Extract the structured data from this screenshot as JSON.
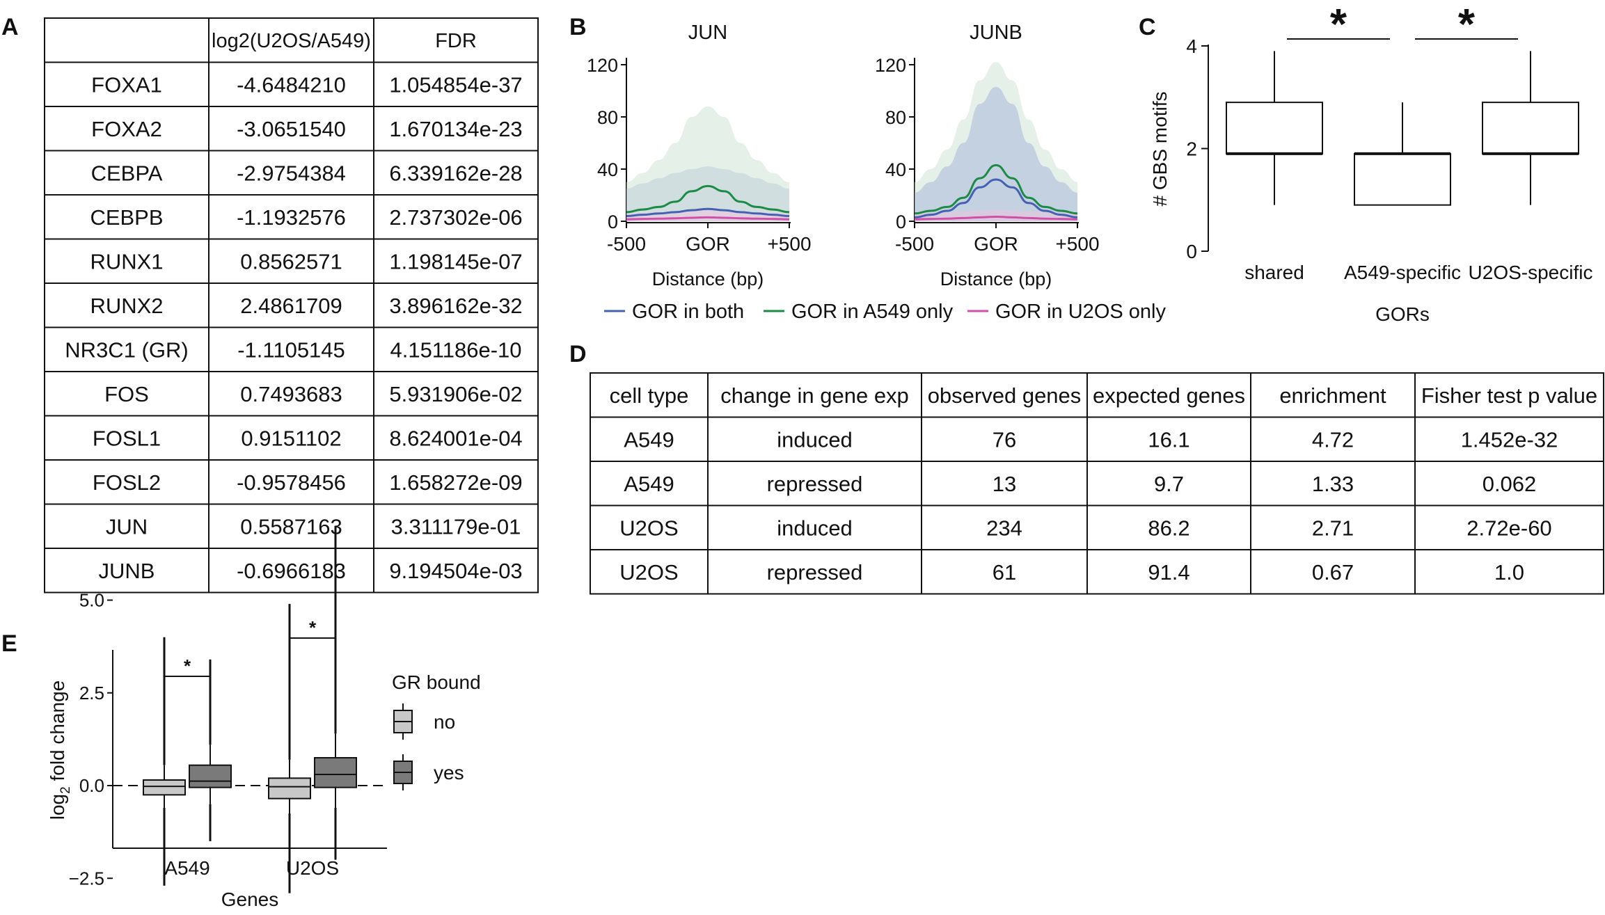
{
  "panel_labels": {
    "a": "A",
    "b": "B",
    "c": "C",
    "d": "D",
    "e": "E"
  },
  "chart_data": [
    {
      "panel": "A",
      "type": "table",
      "columns": [
        "",
        "log2(U2OS/A549)",
        "FDR"
      ],
      "rows": [
        [
          "FOXA1",
          "-4.6484210",
          "1.054854e-37"
        ],
        [
          "FOXA2",
          "-3.0651540",
          "1.670134e-23"
        ],
        [
          "CEBPA",
          "-2.9754384",
          "6.339162e-28"
        ],
        [
          "CEBPB",
          "-1.1932576",
          "2.737302e-06"
        ],
        [
          "RUNX1",
          "0.8562571",
          "1.198145e-07"
        ],
        [
          "RUNX2",
          "2.4861709",
          "3.896162e-32"
        ],
        [
          "NR3C1 (GR)",
          "-1.1105145",
          "4.151186e-10"
        ],
        [
          "FOS",
          "0.7493683",
          "5.931906e-02"
        ],
        [
          "FOSL1",
          "0.9151102",
          "8.624001e-04"
        ],
        [
          "FOSL2",
          "-0.9578456",
          "1.658272e-09"
        ],
        [
          "JUN",
          "0.5587163",
          "3.311179e-01"
        ],
        [
          "JUNB",
          "-0.6966183",
          "9.194504e-03"
        ]
      ]
    },
    {
      "panel": "B",
      "type": "area",
      "title": "JUN",
      "xlabel": "Distance (bp)",
      "x_ticks": [
        "-500",
        "GOR",
        "+500"
      ],
      "ylim": [
        0,
        120
      ],
      "y_ticks": [
        "0",
        "40",
        "80",
        "120"
      ],
      "x": [
        -500,
        -400,
        -300,
        -200,
        -100,
        0,
        100,
        200,
        300,
        400,
        500
      ],
      "series": [
        {
          "name": "GOR in both",
          "color": "#4361b0",
          "mean": [
            4,
            5,
            6,
            7,
            8.5,
            9.5,
            8.5,
            7,
            6,
            5,
            4
          ],
          "upper": [
            25,
            29,
            33,
            37,
            40,
            42,
            40,
            37,
            33,
            29,
            25
          ],
          "band_color": "#a9b8da"
        },
        {
          "name": "GOR in A549 only",
          "color": "#1b8a44",
          "mean": [
            7,
            9,
            11,
            15,
            23,
            27,
            23,
            15,
            11,
            9,
            7
          ],
          "upper": [
            30,
            37,
            47,
            60,
            80,
            88,
            80,
            60,
            47,
            37,
            30
          ],
          "band_color": "#cfe3d6"
        },
        {
          "name": "GOR in U2OS only",
          "color": "#d04fa8",
          "mean": [
            1.5,
            1.8,
            2,
            2.3,
            2.7,
            3,
            2.7,
            2.3,
            2,
            1.8,
            1.5
          ],
          "upper": [
            6,
            6.5,
            7,
            7.5,
            8,
            8.5,
            8,
            7.5,
            7,
            6.5,
            6
          ],
          "band_color": "#ecc4e0"
        }
      ]
    },
    {
      "panel": "B",
      "type": "area",
      "title": "JUNB",
      "xlabel": "Distance (bp)",
      "x_ticks": [
        "-500",
        "GOR",
        "+500"
      ],
      "ylim": [
        0,
        120
      ],
      "y_ticks": [
        "0",
        "40",
        "80",
        "120"
      ],
      "x": [
        -500,
        -400,
        -300,
        -200,
        -100,
        0,
        100,
        200,
        300,
        400,
        500
      ],
      "series": [
        {
          "name": "GOR in A549 only",
          "color": "#1b8a44",
          "mean": [
            6,
            8,
            11,
            18,
            33,
            43,
            33,
            18,
            11,
            8,
            6
          ],
          "upper": [
            30,
            40,
            55,
            78,
            108,
            122,
            108,
            78,
            55,
            40,
            30
          ],
          "band_color": "#cfe3d6"
        },
        {
          "name": "GOR in both",
          "color": "#4361b0",
          "mean": [
            3,
            5,
            8,
            14,
            26,
            32,
            26,
            14,
            8,
            5,
            3
          ],
          "upper": [
            22,
            30,
            42,
            60,
            90,
            103,
            90,
            60,
            42,
            30,
            22
          ],
          "band_color": "#a9b8da"
        },
        {
          "name": "GOR in U2OS only",
          "color": "#d04fa8",
          "mean": [
            1.5,
            1.8,
            2,
            2.5,
            3,
            3.5,
            3,
            2.5,
            2,
            1.8,
            1.5
          ],
          "upper": [
            6,
            6.5,
            7,
            7.5,
            8,
            8.5,
            8,
            7.5,
            7,
            6.5,
            6
          ],
          "band_color": "#ecc4e0"
        }
      ]
    },
    {
      "panel": "B-legend",
      "type": "legend",
      "entries": [
        {
          "name": "GOR in both",
          "color": "#4361b0"
        },
        {
          "name": "GOR in A549 only",
          "color": "#1b8a44"
        },
        {
          "name": "GOR in U2OS only",
          "color": "#d04fa8"
        }
      ]
    },
    {
      "panel": "C",
      "type": "boxplot",
      "categories": [
        "shared",
        "A549-specific",
        "U2OS-specific"
      ],
      "xlabel": "GORs",
      "ylabel": "# GBS motifs",
      "ylim": [
        0,
        4
      ],
      "y_ticks": [
        "0",
        "2",
        "4"
      ],
      "boxes": [
        {
          "min": 0.9,
          "q1": 1.9,
          "median": 1.9,
          "q3": 2.9,
          "max": 3.9
        },
        {
          "min": 0.9,
          "q1": 0.9,
          "median": 1.9,
          "q3": 1.9,
          "max": 2.9
        },
        {
          "min": 0.9,
          "q1": 1.9,
          "median": 1.9,
          "q3": 2.9,
          "max": 3.9
        }
      ],
      "significance": [
        {
          "from": 0,
          "to": 1,
          "label": "*"
        },
        {
          "from": 1,
          "to": 2,
          "label": "*"
        }
      ]
    },
    {
      "panel": "D",
      "type": "table",
      "columns": [
        "cell type",
        "change in gene exp",
        "observed genes",
        "expected genes",
        "enrichment",
        "Fisher test p value"
      ],
      "rows": [
        [
          "A549",
          "induced",
          "76",
          "16.1",
          "4.72",
          "1.452e-32"
        ],
        [
          "A549",
          "repressed",
          "13",
          "9.7",
          "1.33",
          "0.062"
        ],
        [
          "U2OS",
          "induced",
          "234",
          "86.2",
          "2.71",
          "2.72e-60"
        ],
        [
          "U2OS",
          "repressed",
          "61",
          "91.4",
          "0.67",
          "1.0"
        ]
      ]
    },
    {
      "panel": "E",
      "type": "boxplot",
      "categories": [
        "A549",
        "U2OS"
      ],
      "xlabel": "Genes",
      "ylabel": "log",
      "ylabel_sub": "2",
      "ylabel_rest": " fold change",
      "ylim": [
        -3,
        7
      ],
      "y_ticks": [
        "5.0",
        "2.5",
        "0.0",
        "−2.5"
      ],
      "y_tick_values": [
        5,
        2.5,
        0,
        -2.5
      ],
      "legend_title": "GR bound",
      "legend_entries": [
        {
          "name": "no",
          "color": "#c8c8c8"
        },
        {
          "name": "yes",
          "color": "#7a7a7a"
        }
      ],
      "groups": [
        {
          "category": "A549",
          "gr_bound": "no",
          "q1": -0.25,
          "median": -0.02,
          "q3": 0.15,
          "whisker_low": -0.6,
          "whisker_high": 0.55,
          "out_low": -2.7,
          "out_high": 4.0
        },
        {
          "category": "A549",
          "gr_bound": "yes",
          "q1": -0.05,
          "median": 0.12,
          "q3": 0.55,
          "whisker_low": -0.5,
          "whisker_high": 1.1,
          "out_low": -1.5,
          "out_high": 3.4
        },
        {
          "category": "U2OS",
          "gr_bound": "no",
          "q1": -0.35,
          "median": -0.03,
          "q3": 0.2,
          "whisker_low": -0.75,
          "whisker_high": 0.7,
          "out_low": -2.9,
          "out_high": 4.9
        },
        {
          "category": "U2OS",
          "gr_bound": "yes",
          "q1": -0.05,
          "median": 0.3,
          "q3": 0.75,
          "whisker_low": -0.6,
          "whisker_high": 1.4,
          "out_low": -2.0,
          "out_high": 7.0
        }
      ],
      "significance": [
        {
          "category": "A549",
          "label": "*"
        },
        {
          "category": "U2OS",
          "label": "*"
        }
      ]
    }
  ]
}
